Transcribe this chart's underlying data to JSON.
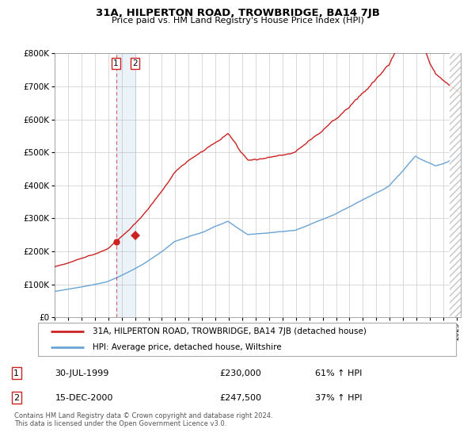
{
  "title": "31A, HILPERTON ROAD, TROWBRIDGE, BA14 7JB",
  "subtitle": "Price paid vs. HM Land Registry's House Price Index (HPI)",
  "legend_line1": "31A, HILPERTON ROAD, TROWBRIDGE, BA14 7JB (detached house)",
  "legend_line2": "HPI: Average price, detached house, Wiltshire",
  "sale1_date": "30-JUL-1999",
  "sale1_price": "£230,000",
  "sale1_hpi": "61% ↑ HPI",
  "sale2_date": "15-DEC-2000",
  "sale2_price": "£247,500",
  "sale2_hpi": "37% ↑ HPI",
  "footnote": "Contains HM Land Registry data © Crown copyright and database right 2024.\nThis data is licensed under the Open Government Licence v3.0.",
  "hpi_color": "#6aa3d5",
  "price_color": "#cc2222",
  "marker_color": "#cc2222",
  "sale1_x": 1999.58,
  "sale1_y": 230000,
  "sale2_x": 2001.0,
  "sale2_y": 247500,
  "ylim": [
    0,
    800000
  ],
  "xlim_start": 1995.0,
  "xlim_end": 2025.3,
  "hatch_start": 2024.5,
  "background_color": "#ffffff",
  "grid_color": "#cccccc"
}
